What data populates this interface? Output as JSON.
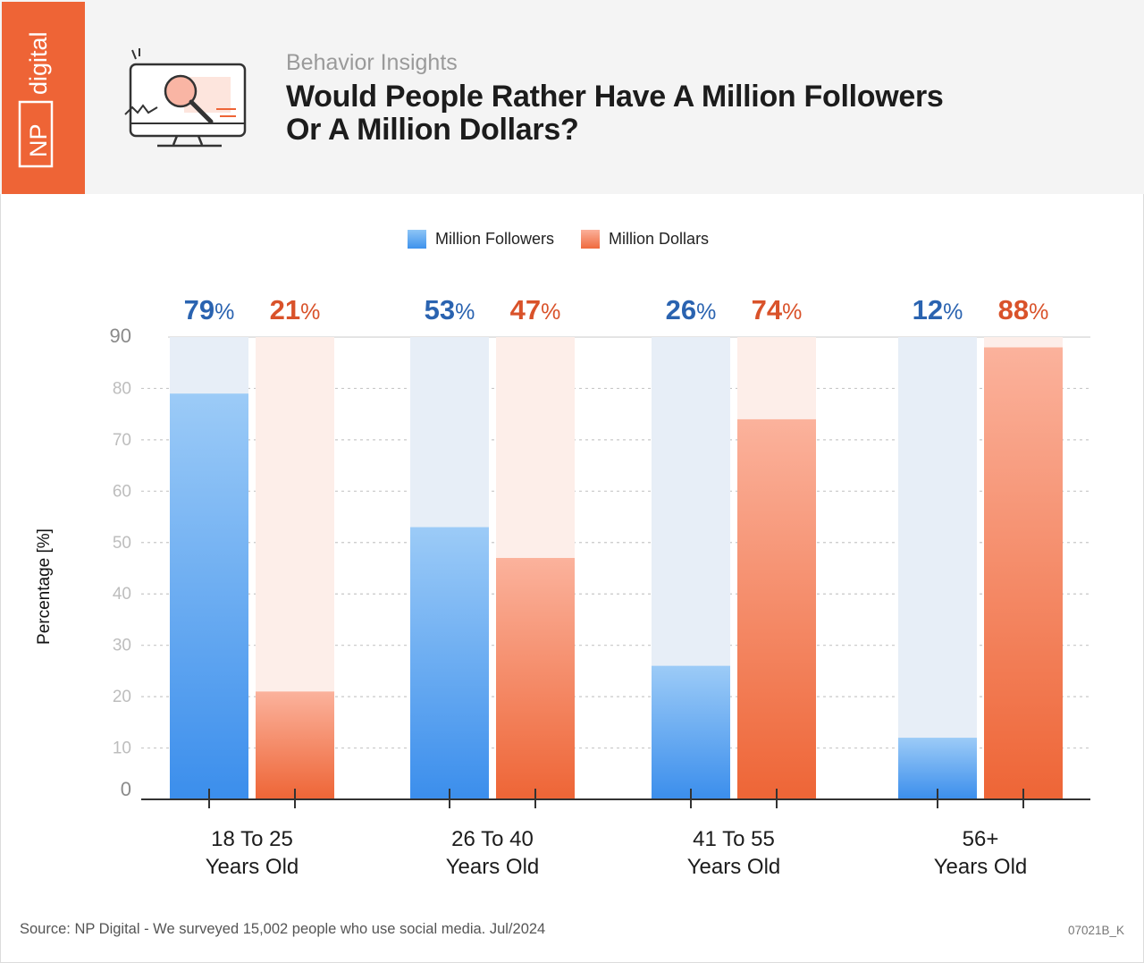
{
  "brand": {
    "logo_text": "NP digital",
    "color": "#ee6436"
  },
  "header": {
    "subtitle": "Behavior Insights",
    "title_line1": "Would People Rather Have A Million Followers",
    "title_line2": "Or A Million Dollars?",
    "icon": "monitor-magnifier-icon"
  },
  "chart_data": {
    "type": "bar",
    "title": "Would People Rather Have A Million Followers Or A Million Dollars?",
    "xlabel": "",
    "ylabel": "Percentage [%]",
    "ylim": [
      0,
      90
    ],
    "yticks": [
      0,
      10,
      20,
      30,
      40,
      50,
      60,
      70,
      80,
      90
    ],
    "grid": true,
    "legend_position": "top-center",
    "categories": [
      [
        "18 To 25",
        "Years Old"
      ],
      [
        "26 To 40",
        "Years Old"
      ],
      [
        "41 To 55",
        "Years Old"
      ],
      [
        "56+",
        "Years Old"
      ]
    ],
    "series": [
      {
        "name": "Million Followers",
        "values": [
          79,
          53,
          26,
          12
        ],
        "color": "#3e92ec",
        "label_color": "#2a63b0"
      },
      {
        "name": "Million Dollars",
        "values": [
          21,
          47,
          74,
          88
        ],
        "color": "#ef6a3e",
        "label_color": "#d9522a"
      }
    ],
    "value_suffix": "%"
  },
  "footer": {
    "source": "Source: NP Digital - We surveyed 15,002 people who use social media. Jul/2024",
    "code": "07021B_K"
  }
}
